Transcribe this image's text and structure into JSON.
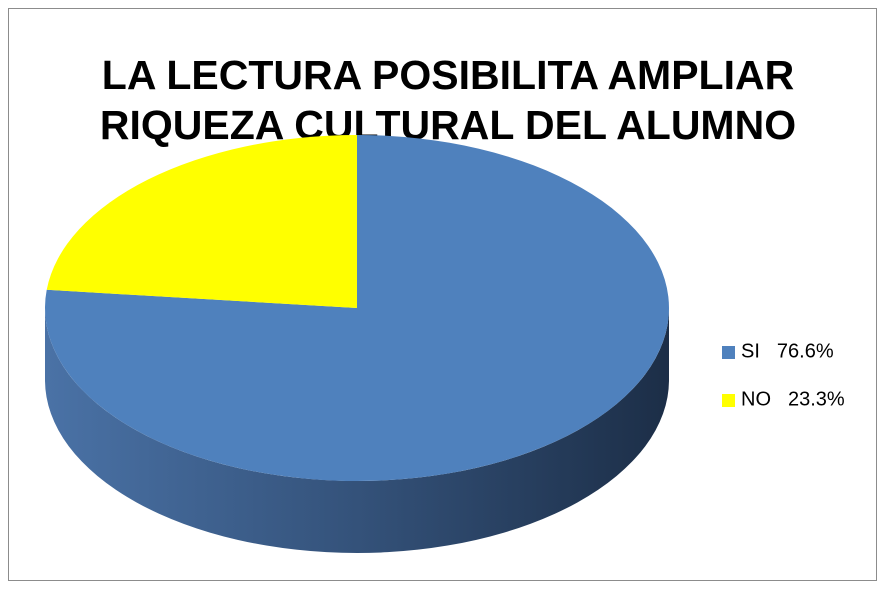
{
  "chart_data": {
    "type": "pie",
    "title": [
      "LA LECTURA POSIBILITA AMPLIAR",
      "RIQUEZA CULTURAL DEL ALUMNO"
    ],
    "categories": [
      "SI",
      "NO"
    ],
    "values": [
      76.6,
      23.3
    ],
    "value_labels": [
      "76.6%",
      "23.3%"
    ],
    "colors": [
      "#4f81bd",
      "#ffff00"
    ],
    "legend": "right"
  }
}
